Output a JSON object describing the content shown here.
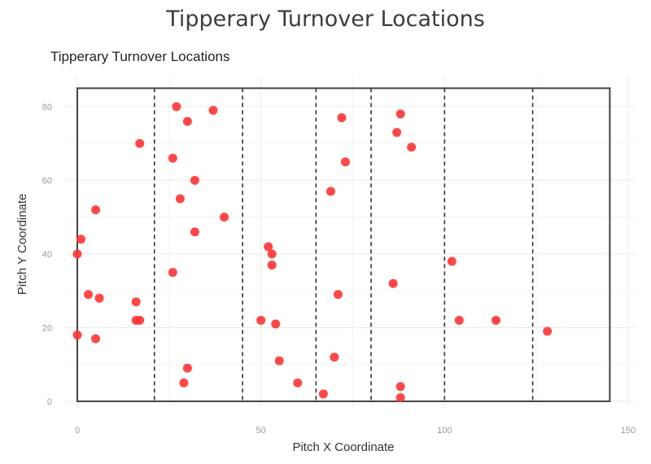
{
  "header": {
    "title": "Tipperary Turnover Locations",
    "subtitle": "Tipperary Turnover Locations"
  },
  "chart_data": {
    "type": "scatter",
    "title": "Tipperary Turnover Locations",
    "subtitle": "Tipperary Turnover Locations",
    "xlabel": "Pitch X Coordinate",
    "ylabel": "Pitch Y Coordinate",
    "xlim": [
      -3,
      152
    ],
    "ylim": [
      -2,
      88
    ],
    "x_ticks": [
      0,
      50,
      100,
      150
    ],
    "y_ticks": [
      0,
      20,
      40,
      60,
      80
    ],
    "grid": true,
    "legend": "none",
    "point_color": "#ff3333",
    "pitch_outline": {
      "x0": 0,
      "y0": 0,
      "x1": 145,
      "y1": 85
    },
    "dashed_lines_x": [
      21,
      45,
      65,
      80,
      100,
      124
    ],
    "points": [
      {
        "x": 0,
        "y": 40
      },
      {
        "x": 1,
        "y": 44
      },
      {
        "x": 0,
        "y": 18
      },
      {
        "x": 3,
        "y": 29
      },
      {
        "x": 5,
        "y": 52
      },
      {
        "x": 6,
        "y": 28
      },
      {
        "x": 5,
        "y": 17
      },
      {
        "x": 16,
        "y": 27
      },
      {
        "x": 16,
        "y": 22
      },
      {
        "x": 17,
        "y": 22
      },
      {
        "x": 17,
        "y": 70
      },
      {
        "x": 26,
        "y": 35
      },
      {
        "x": 26,
        "y": 66
      },
      {
        "x": 27,
        "y": 80
      },
      {
        "x": 28,
        "y": 55
      },
      {
        "x": 29,
        "y": 5
      },
      {
        "x": 30,
        "y": 9
      },
      {
        "x": 30,
        "y": 76
      },
      {
        "x": 32,
        "y": 60
      },
      {
        "x": 32,
        "y": 46
      },
      {
        "x": 37,
        "y": 79
      },
      {
        "x": 40,
        "y": 50
      },
      {
        "x": 50,
        "y": 22
      },
      {
        "x": 52,
        "y": 42
      },
      {
        "x": 53,
        "y": 40
      },
      {
        "x": 53,
        "y": 37
      },
      {
        "x": 54,
        "y": 21
      },
      {
        "x": 55,
        "y": 11
      },
      {
        "x": 60,
        "y": 5
      },
      {
        "x": 67,
        "y": 2
      },
      {
        "x": 69,
        "y": 57
      },
      {
        "x": 70,
        "y": 12
      },
      {
        "x": 71,
        "y": 29
      },
      {
        "x": 72,
        "y": 77
      },
      {
        "x": 73,
        "y": 65
      },
      {
        "x": 86,
        "y": 32
      },
      {
        "x": 87,
        "y": 73
      },
      {
        "x": 88,
        "y": 78
      },
      {
        "x": 88,
        "y": 4
      },
      {
        "x": 88,
        "y": 1
      },
      {
        "x": 91,
        "y": 69
      },
      {
        "x": 102,
        "y": 38
      },
      {
        "x": 104,
        "y": 22
      },
      {
        "x": 114,
        "y": 22
      },
      {
        "x": 128,
        "y": 19
      }
    ]
  }
}
